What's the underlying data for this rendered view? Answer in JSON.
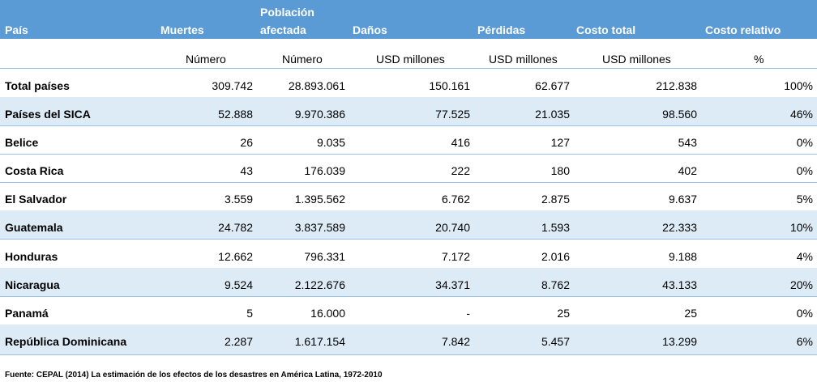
{
  "headers": {
    "pais": "País",
    "muertes": "Muertes",
    "poblacion_l1": "Población",
    "poblacion_l2": "afectada",
    "danos": "Daños",
    "perdidas": "Pérdidas",
    "costo_total": "Costo total",
    "costo_relativo": "Costo relativo"
  },
  "units": {
    "muertes": "Número",
    "poblacion": "Número",
    "danos": "USD millones",
    "perdidas": "USD millones",
    "costo_total": "USD millones",
    "costo_relativo": "%"
  },
  "rows": [
    {
      "pais": "Total países",
      "muertes": "309.742",
      "poblacion": "28.893.061",
      "danos": "150.161",
      "perdidas": "62.677",
      "costo_total": "212.838",
      "costo_relativo": "100%"
    },
    {
      "pais": "Países del SICA",
      "muertes": "52.888",
      "poblacion": "9.970.386",
      "danos": "77.525",
      "perdidas": "21.035",
      "costo_total": "98.560",
      "costo_relativo": "46%"
    },
    {
      "pais": "Belice",
      "muertes": "26",
      "poblacion": "9.035",
      "danos": "416",
      "perdidas": "127",
      "costo_total": "543",
      "costo_relativo": "0%"
    },
    {
      "pais": "Costa Rica",
      "muertes": "43",
      "poblacion": "176.039",
      "danos": "222",
      "perdidas": "180",
      "costo_total": "402",
      "costo_relativo": "0%"
    },
    {
      "pais": "El Salvador",
      "muertes": "3.559",
      "poblacion": "1.395.562",
      "danos": "6.762",
      "perdidas": "2.875",
      "costo_total": "9.637",
      "costo_relativo": "5%"
    },
    {
      "pais": "Guatemala",
      "muertes": "24.782",
      "poblacion": "3.837.589",
      "danos": "20.740",
      "perdidas": "1.593",
      "costo_total": "22.333",
      "costo_relativo": "10%"
    },
    {
      "pais": "Honduras",
      "muertes": "12.662",
      "poblacion": "796.331",
      "danos": "7.172",
      "perdidas": "2.016",
      "costo_total": "9.188",
      "costo_relativo": "4%"
    },
    {
      "pais": "Nicaragua",
      "muertes": "9.524",
      "poblacion": "2.122.676",
      "danos": "34.371",
      "perdidas": "8.762",
      "costo_total": "43.133",
      "costo_relativo": "20%"
    },
    {
      "pais": "Panamá",
      "muertes": "5",
      "poblacion": "16.000",
      "danos": "-",
      "perdidas": "25",
      "costo_total": "25",
      "costo_relativo": "0%"
    },
    {
      "pais": "República Dominicana",
      "muertes": "2.287",
      "poblacion": "1.617.154",
      "danos": "7.842",
      "perdidas": "5.457",
      "costo_total": "13.299",
      "costo_relativo": "6%"
    }
  ],
  "source": "Fuente: CEPAL (2014) La estimación de los efectos de los desastres en América Latina, 1972-2010",
  "colors": {
    "header_bg": "#5b9bd5",
    "header_text": "#ffffff",
    "row_shade": "#ddebf7",
    "rule": "#9bc2e6"
  }
}
